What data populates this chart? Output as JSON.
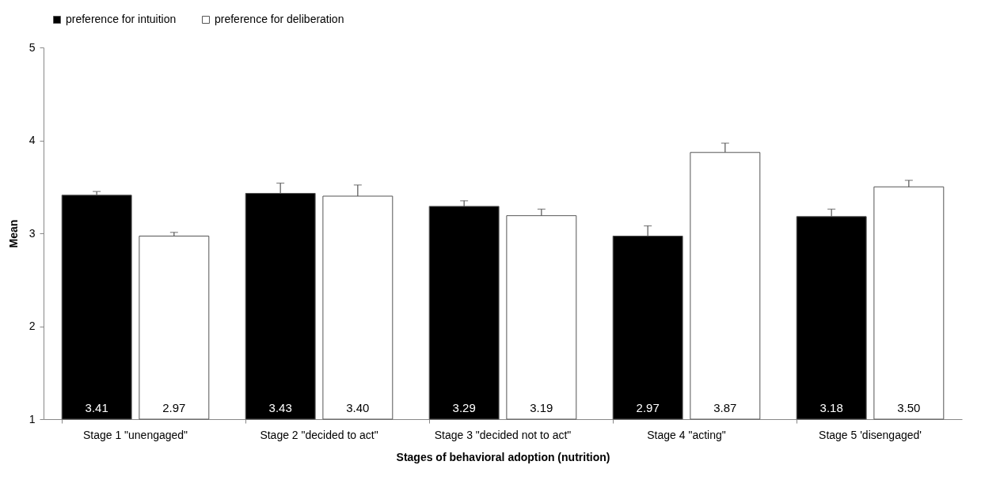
{
  "chart_data": {
    "type": "bar",
    "xlabel": "Stages of behavioral adoption (nutrition)",
    "ylabel": "Mean",
    "categories": [
      "Stage 1 \"unengaged\"",
      "Stage 2 \"decided to act\"",
      "Stage 3 \"decided not to act\"",
      "Stage 4 \"acting\"",
      "Stage 5 'disengaged'"
    ],
    "series": [
      {
        "name": "preference for intuition",
        "color": "#000000",
        "values": [
          3.41,
          3.43,
          3.29,
          2.97,
          3.18
        ],
        "value_labels": [
          "3.41",
          "3.43",
          "3.29",
          "2.97",
          "3.18"
        ],
        "errors": [
          [
            3.41,
            3.45
          ],
          [
            3.43,
            3.54
          ],
          [
            3.29,
            3.35
          ],
          [
            2.97,
            3.08
          ],
          [
            3.18,
            3.26
          ]
        ]
      },
      {
        "name": "preference for deliberation",
        "color": "#ffffff",
        "values": [
          2.97,
          3.4,
          3.19,
          3.87,
          3.5
        ],
        "value_labels": [
          "2.97",
          "3.40",
          "3.19",
          "3.87",
          "3.50"
        ],
        "errors": [
          [
            2.97,
            3.01
          ],
          [
            3.4,
            3.52
          ],
          [
            3.19,
            3.26
          ],
          [
            3.87,
            3.97
          ],
          [
            3.5,
            3.57
          ]
        ]
      }
    ],
    "ylim": [
      1,
      5
    ],
    "yticks": [
      1,
      2,
      3,
      4,
      5
    ],
    "grid": false,
    "legend": "top"
  }
}
